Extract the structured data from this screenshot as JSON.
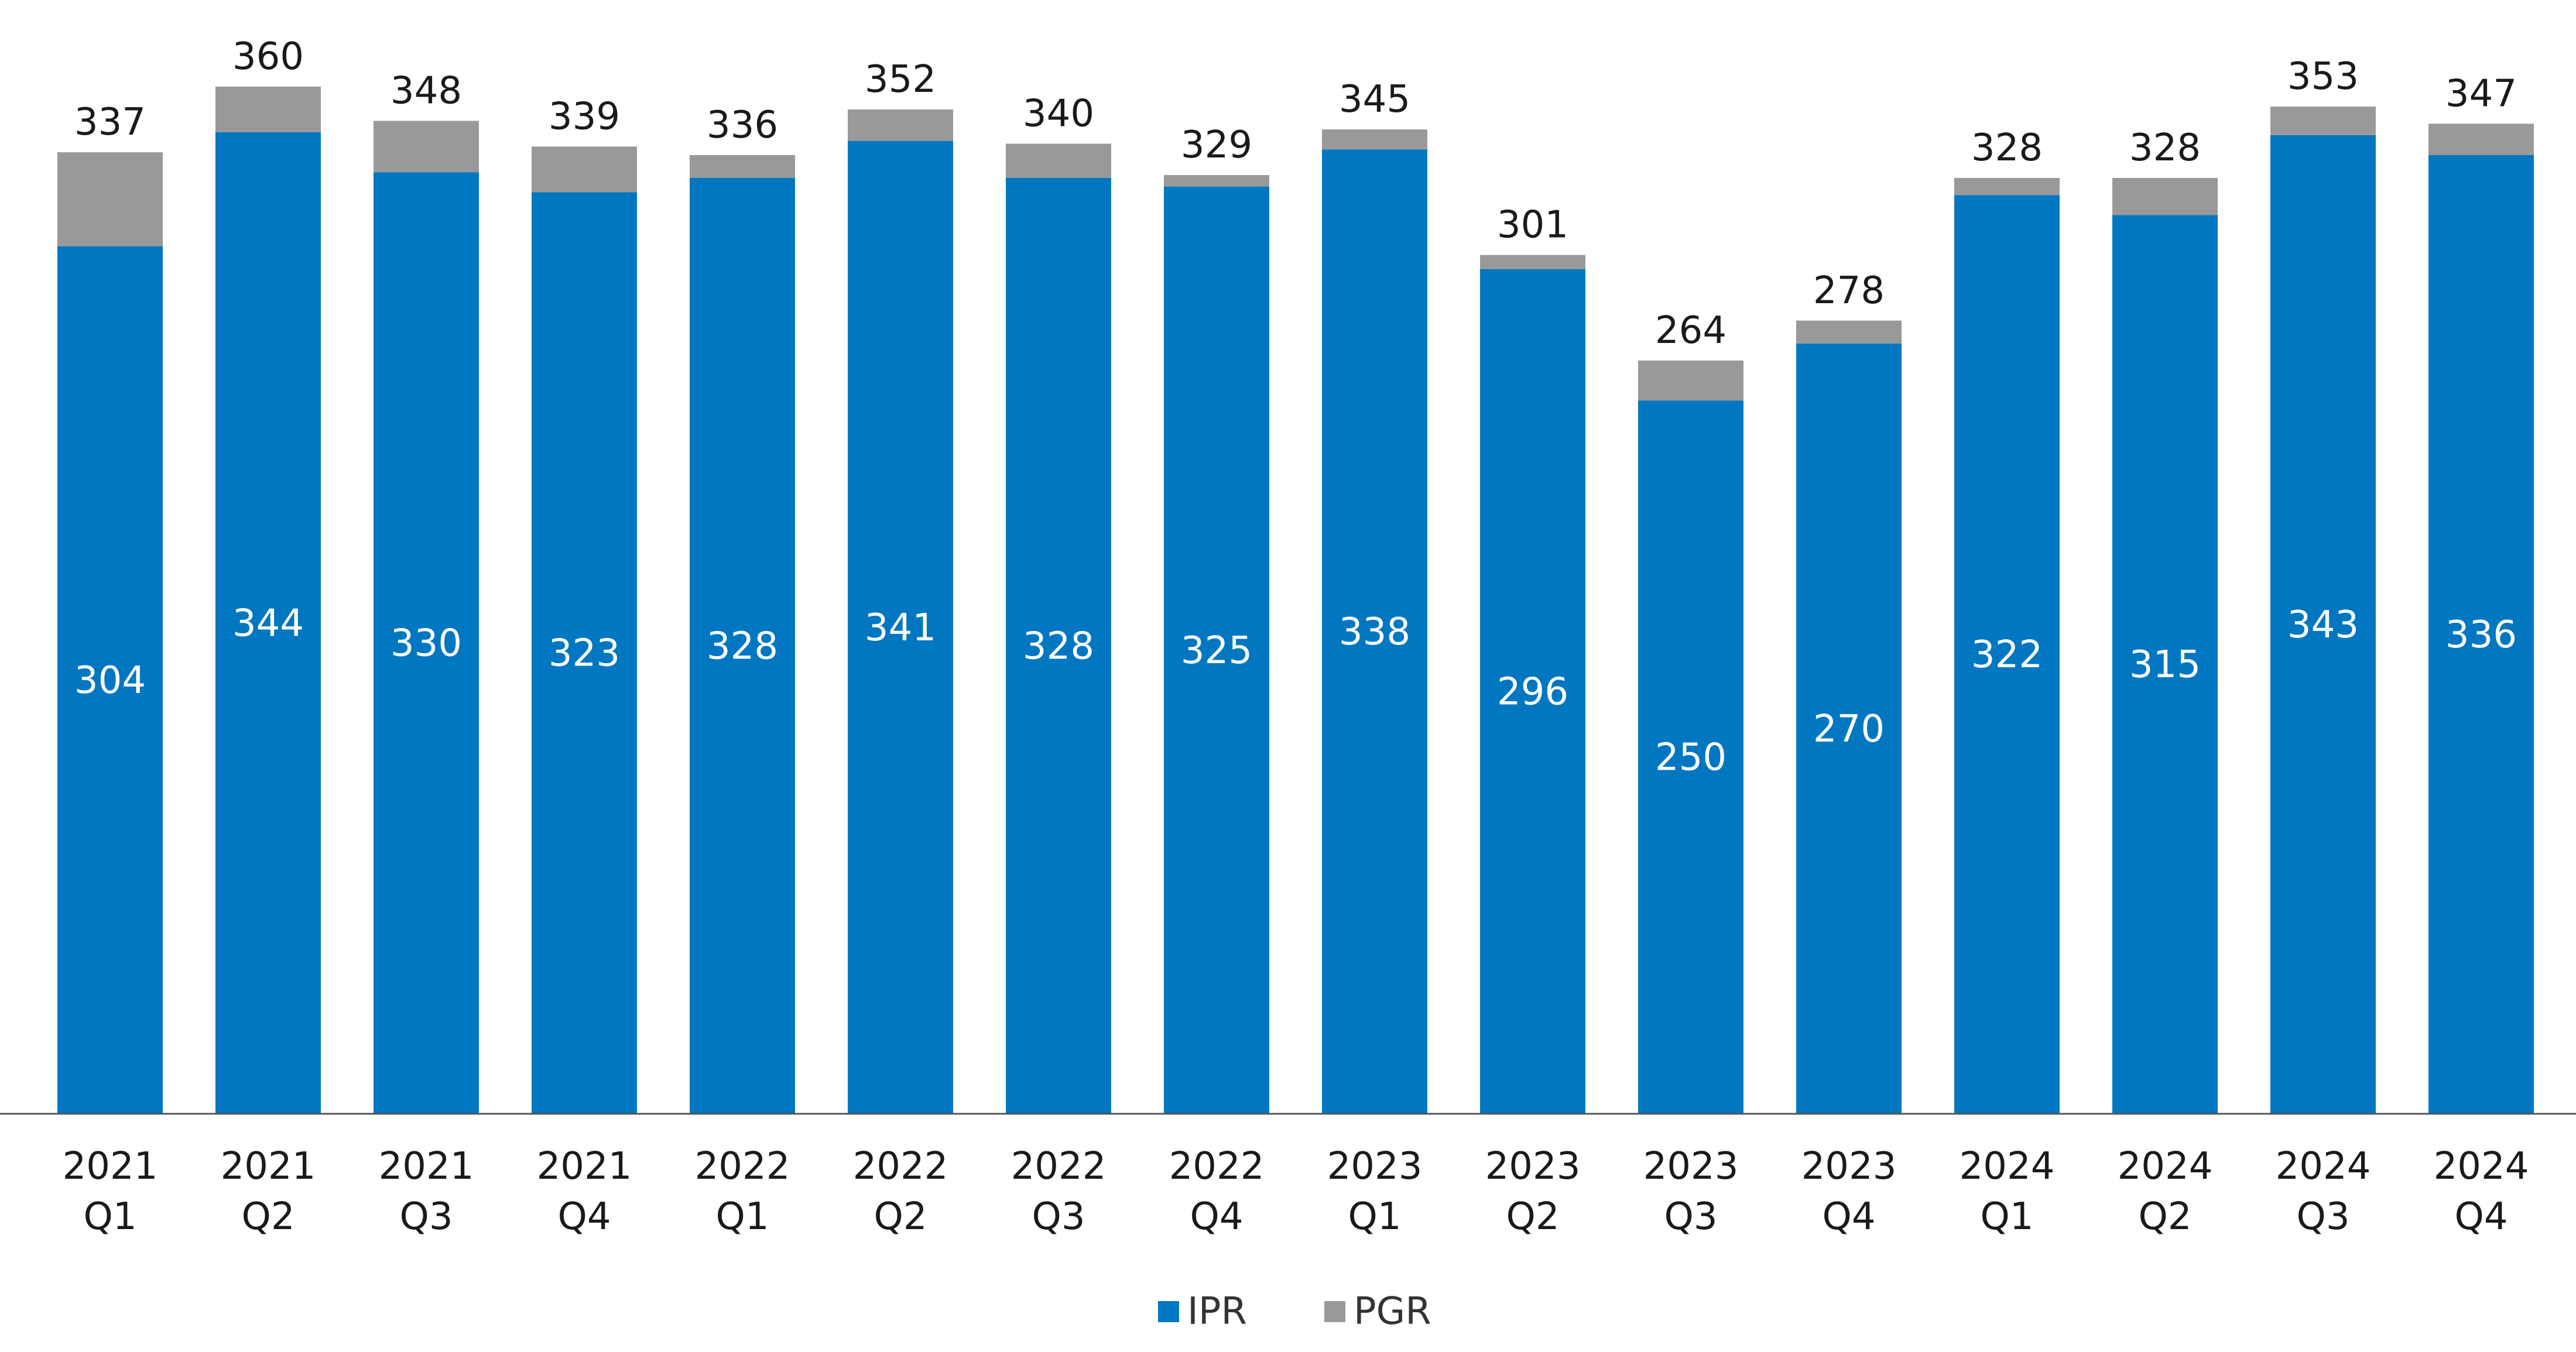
{
  "chart_data": {
    "type": "bar",
    "stacked": true,
    "title": "",
    "xlabel": "",
    "ylabel": "",
    "ylim": [
      0,
      360
    ],
    "grid": false,
    "legend_position": "bottom-center",
    "categories": [
      [
        "2021",
        "Q1"
      ],
      [
        "2021",
        "Q2"
      ],
      [
        "2021",
        "Q3"
      ],
      [
        "2021",
        "Q4"
      ],
      [
        "2022",
        "Q1"
      ],
      [
        "2022",
        "Q2"
      ],
      [
        "2022",
        "Q3"
      ],
      [
        "2022",
        "Q4"
      ],
      [
        "2023",
        "Q1"
      ],
      [
        "2023",
        "Q2"
      ],
      [
        "2023",
        "Q3"
      ],
      [
        "2023",
        "Q4"
      ],
      [
        "2024",
        "Q1"
      ],
      [
        "2024",
        "Q2"
      ],
      [
        "2024",
        "Q3"
      ],
      [
        "2024",
        "Q4"
      ]
    ],
    "series": [
      {
        "name": "IPR",
        "color": "#0077c0",
        "values": [
          304,
          344,
          330,
          323,
          328,
          341,
          328,
          325,
          338,
          296,
          250,
          270,
          322,
          315,
          343,
          336
        ]
      },
      {
        "name": "PGR",
        "color": "#999999",
        "values": [
          33,
          16,
          18,
          16,
          8,
          11,
          12,
          4,
          7,
          5,
          14,
          8,
          6,
          13,
          10,
          11
        ]
      }
    ],
    "totals": [
      337,
      360,
      348,
      339,
      336,
      352,
      340,
      329,
      345,
      301,
      264,
      278,
      328,
      328,
      353,
      347
    ]
  }
}
